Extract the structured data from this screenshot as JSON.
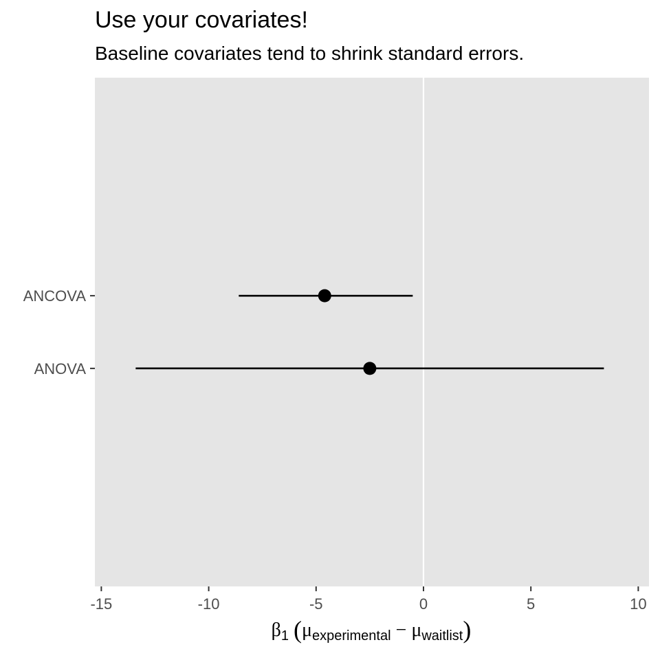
{
  "chart_data": {
    "type": "forest",
    "title": "Use your covariates!",
    "subtitle": "Baseline covariates tend to shrink standard errors.",
    "xlabel": {
      "beta": "β",
      "beta_sub": "1",
      "open_paren": "(",
      "mu1": "μ",
      "mu1_sub": "experimental",
      "minus": "−",
      "mu2": "μ",
      "mu2_sub": "waitlist",
      "close_paren": ")"
    },
    "xlim": [
      -15.3,
      10.5
    ],
    "xticks": [
      -15,
      -10,
      -5,
      0,
      5,
      10
    ],
    "xtick_labels": [
      "-15",
      "-10",
      "-5",
      "0",
      "5",
      "10"
    ],
    "reference_line": 0,
    "categories": [
      "ANCOVA",
      "ANOVA"
    ],
    "estimates": [
      {
        "label": "ANCOVA",
        "estimate": -4.6,
        "lower": -8.6,
        "upper": -0.5
      },
      {
        "label": "ANOVA",
        "estimate": -2.5,
        "lower": -13.4,
        "upper": 8.4
      }
    ],
    "colors": {
      "panel": "#e5e5e5",
      "mark": "#000000",
      "reference": "#ffffff",
      "tick": "#333333"
    }
  }
}
